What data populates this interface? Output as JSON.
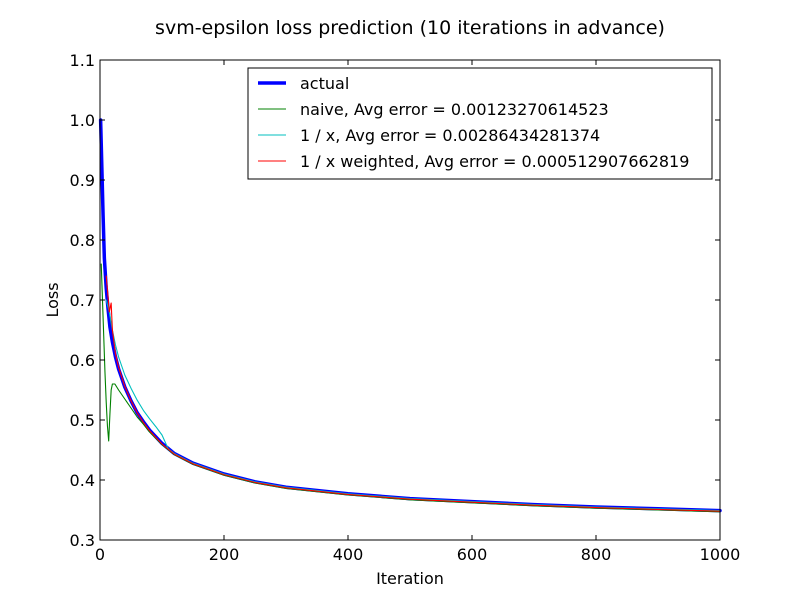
{
  "chart_data": {
    "type": "line",
    "title": "svm-epsilon loss prediction (10 iterations in advance)",
    "xlabel": "Iteration",
    "ylabel": "Loss",
    "xlim": [
      0,
      1000
    ],
    "ylim": [
      0.3,
      1.1
    ],
    "x_ticks": [
      0,
      200,
      400,
      600,
      800,
      1000
    ],
    "y_ticks": [
      0.3,
      0.4,
      0.5,
      0.6,
      0.7,
      0.8,
      0.9,
      1.0,
      1.1
    ],
    "x_tick_labels": [
      "0",
      "200",
      "400",
      "600",
      "800",
      "1000"
    ],
    "y_tick_labels": [
      "0.3",
      "0.4",
      "0.5",
      "0.6",
      "0.7",
      "0.8",
      "0.9",
      "1.0",
      "1.1"
    ],
    "grid": false,
    "legend_position": "top-right",
    "series": [
      {
        "name": "actual",
        "color": "#0000ff",
        "points": [
          [
            1,
            1.0
          ],
          [
            3,
            0.92
          ],
          [
            5,
            0.84
          ],
          [
            7,
            0.77
          ],
          [
            10,
            0.72
          ],
          [
            13,
            0.685
          ],
          [
            16,
            0.655
          ],
          [
            20,
            0.63
          ],
          [
            25,
            0.605
          ],
          [
            30,
            0.585
          ],
          [
            40,
            0.555
          ],
          [
            50,
            0.532
          ],
          [
            60,
            0.512
          ],
          [
            70,
            0.497
          ],
          [
            80,
            0.483
          ],
          [
            100,
            0.461
          ],
          [
            120,
            0.444
          ],
          [
            150,
            0.428
          ],
          [
            200,
            0.41
          ],
          [
            250,
            0.397
          ],
          [
            300,
            0.388
          ],
          [
            400,
            0.377
          ],
          [
            500,
            0.369
          ],
          [
            600,
            0.364
          ],
          [
            700,
            0.359
          ],
          [
            800,
            0.355
          ],
          [
            900,
            0.352
          ],
          [
            1000,
            0.349
          ]
        ]
      },
      {
        "name": "naive, Avg error = 0.00123270614523",
        "color": "#008000",
        "points": [
          [
            2,
            0.76
          ],
          [
            4,
            0.7
          ],
          [
            6,
            0.64
          ],
          [
            8,
            0.58
          ],
          [
            10,
            0.53
          ],
          [
            12,
            0.49
          ],
          [
            14,
            0.465
          ],
          [
            16,
            0.51
          ],
          [
            18,
            0.55
          ],
          [
            20,
            0.56
          ],
          [
            24,
            0.56
          ],
          [
            30,
            0.55
          ],
          [
            40,
            0.535
          ],
          [
            50,
            0.52
          ],
          [
            60,
            0.505
          ],
          [
            70,
            0.493
          ],
          [
            80,
            0.48
          ],
          [
            100,
            0.459
          ],
          [
            120,
            0.442
          ],
          [
            150,
            0.426
          ],
          [
            200,
            0.408
          ],
          [
            250,
            0.395
          ],
          [
            300,
            0.386
          ],
          [
            400,
            0.375
          ],
          [
            500,
            0.367
          ],
          [
            600,
            0.362
          ],
          [
            700,
            0.357
          ],
          [
            800,
            0.353
          ],
          [
            900,
            0.35
          ],
          [
            1000,
            0.347
          ]
        ]
      },
      {
        "name": "1 / x, Avg error = 0.00286434281374",
        "color": "#00bfbf",
        "points": [
          [
            10,
            0.7
          ],
          [
            15,
            0.68
          ],
          [
            20,
            0.65
          ],
          [
            25,
            0.625
          ],
          [
            30,
            0.605
          ],
          [
            40,
            0.575
          ],
          [
            50,
            0.553
          ],
          [
            60,
            0.533
          ],
          [
            70,
            0.516
          ],
          [
            80,
            0.502
          ],
          [
            90,
            0.489
          ],
          [
            100,
            0.475
          ],
          [
            110,
            0.452
          ],
          [
            120,
            0.444
          ],
          [
            150,
            0.428
          ],
          [
            200,
            0.41
          ],
          [
            250,
            0.397
          ],
          [
            300,
            0.388
          ],
          [
            400,
            0.377
          ],
          [
            500,
            0.369
          ],
          [
            600,
            0.364
          ],
          [
            700,
            0.359
          ],
          [
            800,
            0.355
          ],
          [
            900,
            0.352
          ],
          [
            1000,
            0.349
          ]
        ]
      },
      {
        "name": "1 / x weighted, Avg error = 0.000512907662819",
        "color": "#ff0000",
        "points": [
          [
            10,
            0.74
          ],
          [
            13,
            0.705
          ],
          [
            15,
            0.68
          ],
          [
            18,
            0.695
          ],
          [
            20,
            0.65
          ],
          [
            25,
            0.61
          ],
          [
            30,
            0.588
          ],
          [
            40,
            0.556
          ],
          [
            50,
            0.532
          ],
          [
            60,
            0.512
          ],
          [
            70,
            0.496
          ],
          [
            80,
            0.482
          ],
          [
            100,
            0.46
          ],
          [
            120,
            0.443
          ],
          [
            150,
            0.427
          ],
          [
            200,
            0.409
          ],
          [
            250,
            0.396
          ],
          [
            300,
            0.387
          ],
          [
            400,
            0.376
          ],
          [
            500,
            0.368
          ],
          [
            600,
            0.363
          ],
          [
            700,
            0.358
          ],
          [
            800,
            0.354
          ],
          [
            900,
            0.351
          ],
          [
            1000,
            0.348
          ]
        ]
      }
    ]
  }
}
